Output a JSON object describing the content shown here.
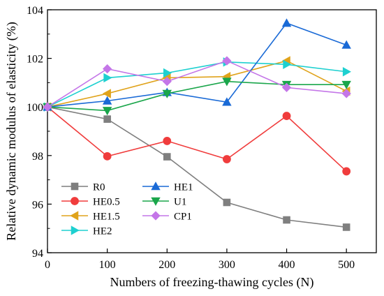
{
  "chart_data": {
    "type": "line",
    "title": "",
    "xlabel": "Numbers of freezing-thawing cycles (N)",
    "ylabel": "Relative dynamic modulus of elasticity (%)",
    "x": [
      0,
      100,
      200,
      300,
      400,
      500
    ],
    "xticks": [
      "0",
      "100",
      "200",
      "300",
      "400",
      "500"
    ],
    "yticks": [
      "94",
      "96",
      "98",
      "100",
      "102",
      "104"
    ],
    "xlim": [
      0,
      550
    ],
    "ylim": [
      94,
      104
    ],
    "grid": false,
    "legend_position": "bottom-left",
    "series": [
      {
        "name": "R0",
        "color": "#7f7f7f",
        "marker": "square",
        "values": [
          100,
          99.5,
          97.95,
          96.07,
          95.35,
          95.05
        ]
      },
      {
        "name": "HE0.5",
        "color": "#f03c3c",
        "marker": "circle",
        "values": [
          100,
          97.97,
          98.6,
          97.85,
          99.63,
          97.35
        ]
      },
      {
        "name": "HE1.5",
        "color": "#e0a31b",
        "marker": "triangle-left",
        "values": [
          100,
          100.55,
          101.2,
          101.25,
          101.9,
          100.65
        ]
      },
      {
        "name": "HE2",
        "color": "#1ed0d0",
        "marker": "triangle-right",
        "values": [
          100,
          101.2,
          101.4,
          101.85,
          101.75,
          101.45
        ]
      },
      {
        "name": "HE1",
        "color": "#1a6ad6",
        "marker": "triangle-up",
        "values": [
          100,
          100.25,
          100.6,
          100.2,
          103.45,
          102.55
        ]
      },
      {
        "name": "U1",
        "color": "#1aa64b",
        "marker": "triangle-down",
        "values": [
          100,
          99.85,
          100.55,
          101.05,
          100.92,
          100.92
        ]
      },
      {
        "name": "CP1",
        "color": "#c476e8",
        "marker": "diamond",
        "values": [
          100,
          101.57,
          101.05,
          101.9,
          100.8,
          100.55
        ]
      }
    ],
    "legend_columns": [
      [
        "R0",
        "HE0.5",
        "HE1.5",
        "HE2"
      ],
      [
        "HE1",
        "U1",
        "CP1"
      ]
    ]
  }
}
